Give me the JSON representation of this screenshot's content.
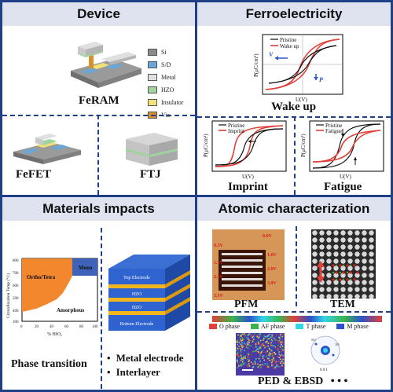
{
  "panels": {
    "device": {
      "title": "Device",
      "feram_label": "FeRAM",
      "fefet_label": "FeFET",
      "ftj_label": "FTJ",
      "legend": [
        {
          "label": "Si",
          "color": "#8a8a8a"
        },
        {
          "label": "S/D",
          "color": "#6aa7d8"
        },
        {
          "label": "Metal",
          "color": "#e0e0e0"
        },
        {
          "label": "HZO",
          "color": "#9fd3a0"
        },
        {
          "label": "Insulator",
          "color": "#f1e27a"
        },
        {
          "label": "Via",
          "color": "#d9902a"
        }
      ]
    },
    "ferro": {
      "title": "Ferroelectricity",
      "wakeup_caption": "Wake up",
      "imprint_caption": "Imprint",
      "fatigue_caption": "Fatigue",
      "ylabel": "P(μC/cm²)",
      "xlabel": "U(V)",
      "wakeup_legend": [
        "Pristine",
        "Wake up"
      ],
      "imprint_legend": [
        "Pristine",
        "Imprint"
      ],
      "fatigue_legend": [
        "Pristine",
        "Fatigue"
      ],
      "pr_label": "P",
      "pr_sub": "r",
      "vc_label": "V",
      "vc_sub": "c"
    },
    "materials": {
      "title": "Materials impacts",
      "phase_caption": "Phase transition",
      "ylabel": "Crystallization Temp (°C)",
      "xlabel": "% HfO₂",
      "y_ticks": [
        "800",
        "700",
        "600",
        "500",
        "400",
        "300"
      ],
      "x_ticks": [
        "0",
        "20",
        "40",
        "60",
        "80",
        "100"
      ],
      "region_ortho": "Ortho/Tetra",
      "region_mono": "Mono",
      "region_amorphous": "Amorphous",
      "stack_layers": [
        "Top Electrode",
        "HZO",
        "HZO",
        "Bottom Electrode"
      ],
      "bullets": [
        "Metal electrode",
        "Interlayer"
      ]
    },
    "atomic": {
      "title": "Atomic characterization",
      "pfm_caption": "PFM",
      "tem_caption": "TEM",
      "ped_caption": "PED & EBSD",
      "ellipsis": "• • •",
      "phase_legend": [
        {
          "label": "O phase",
          "color": "#e0413a"
        },
        {
          "label": "AF phase",
          "color": "#3cb44b"
        },
        {
          "label": "T phase",
          "color": "#35d6e8"
        },
        {
          "label": "M phase",
          "color": "#2b54c8"
        }
      ],
      "pfm_voltages": [
        "0.0V",
        "0.5V",
        "1.0V",
        "1.5V",
        "2.0V",
        "2.5V",
        "3.0V",
        "3.5V"
      ],
      "ebsd_labels": [
        "001",
        "101",
        "0 0 1"
      ]
    }
  }
}
